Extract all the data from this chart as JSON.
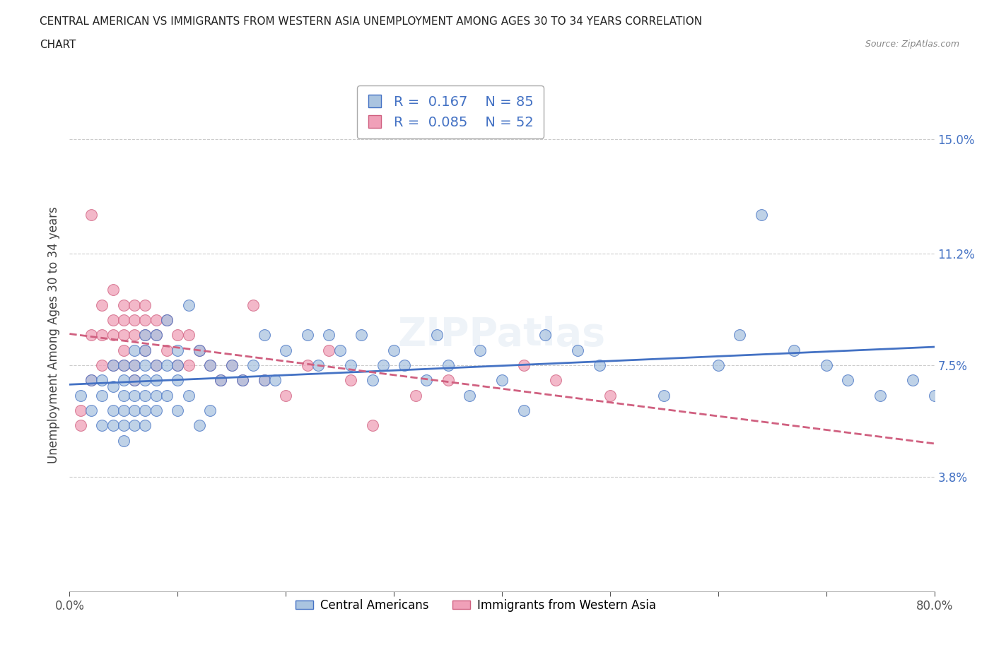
{
  "title_line1": "CENTRAL AMERICAN VS IMMIGRANTS FROM WESTERN ASIA UNEMPLOYMENT AMONG AGES 30 TO 34 YEARS CORRELATION",
  "title_line2": "CHART",
  "source": "Source: ZipAtlas.com",
  "ylabel": "Unemployment Among Ages 30 to 34 years",
  "xlim": [
    0,
    80
  ],
  "ylim": [
    0,
    17
  ],
  "xticks": [
    0,
    10,
    20,
    30,
    40,
    50,
    60,
    70,
    80
  ],
  "xticklabels": [
    "0.0%",
    "",
    "",
    "",
    "",
    "",
    "",
    "",
    "80.0%"
  ],
  "ytick_labels_right": [
    "3.8%",
    "7.5%",
    "11.2%",
    "15.0%"
  ],
  "ytick_values_right": [
    3.8,
    7.5,
    11.2,
    15.0
  ],
  "R_blue": 0.167,
  "N_blue": 85,
  "R_pink": 0.085,
  "N_pink": 52,
  "color_blue": "#aac4e0",
  "color_pink": "#f0a0b8",
  "line_blue": "#4472c4",
  "line_pink": "#d06080",
  "legend_label_blue": "Central Americans",
  "legend_label_pink": "Immigrants from Western Asia",
  "blue_x": [
    1,
    2,
    2,
    3,
    3,
    3,
    4,
    4,
    4,
    4,
    5,
    5,
    5,
    5,
    5,
    5,
    6,
    6,
    6,
    6,
    6,
    6,
    7,
    7,
    7,
    7,
    7,
    7,
    7,
    8,
    8,
    8,
    8,
    8,
    9,
    9,
    9,
    10,
    10,
    10,
    10,
    11,
    11,
    12,
    12,
    13,
    13,
    14,
    15,
    16,
    17,
    18,
    18,
    19,
    20,
    22,
    23,
    24,
    25,
    26,
    27,
    28,
    29,
    30,
    31,
    33,
    34,
    35,
    37,
    38,
    40,
    42,
    44,
    47,
    49,
    55,
    60,
    62,
    64,
    67,
    70,
    72,
    75,
    78,
    80
  ],
  "blue_y": [
    6.5,
    6.0,
    7.0,
    6.5,
    7.0,
    5.5,
    7.5,
    6.8,
    6.0,
    5.5,
    7.5,
    7.0,
    6.5,
    6.0,
    5.5,
    5.0,
    8.0,
    7.5,
    7.0,
    6.5,
    6.0,
    5.5,
    8.5,
    8.0,
    7.5,
    7.0,
    6.5,
    6.0,
    5.5,
    8.5,
    7.5,
    7.0,
    6.5,
    6.0,
    9.0,
    7.5,
    6.5,
    8.0,
    7.5,
    7.0,
    6.0,
    9.5,
    6.5,
    8.0,
    5.5,
    7.5,
    6.0,
    7.0,
    7.5,
    7.0,
    7.5,
    8.5,
    7.0,
    7.0,
    8.0,
    8.5,
    7.5,
    8.5,
    8.0,
    7.5,
    8.5,
    7.0,
    7.5,
    8.0,
    7.5,
    7.0,
    8.5,
    7.5,
    6.5,
    8.0,
    7.0,
    6.0,
    8.5,
    8.0,
    7.5,
    6.5,
    7.5,
    8.5,
    12.5,
    8.0,
    7.5,
    7.0,
    6.5,
    7.0,
    6.5
  ],
  "pink_x": [
    1,
    1,
    2,
    2,
    2,
    3,
    3,
    3,
    4,
    4,
    4,
    4,
    5,
    5,
    5,
    5,
    5,
    6,
    6,
    6,
    6,
    6,
    7,
    7,
    7,
    7,
    8,
    8,
    8,
    9,
    9,
    10,
    10,
    11,
    11,
    12,
    13,
    14,
    15,
    16,
    17,
    18,
    20,
    22,
    24,
    26,
    28,
    32,
    35,
    42,
    45,
    50
  ],
  "pink_y": [
    6.0,
    5.5,
    12.5,
    8.5,
    7.0,
    9.5,
    8.5,
    7.5,
    10.0,
    9.0,
    8.5,
    7.5,
    9.5,
    9.0,
    8.5,
    8.0,
    7.5,
    9.5,
    9.0,
    8.5,
    7.5,
    7.0,
    9.5,
    9.0,
    8.5,
    8.0,
    9.0,
    8.5,
    7.5,
    9.0,
    8.0,
    8.5,
    7.5,
    8.5,
    7.5,
    8.0,
    7.5,
    7.0,
    7.5,
    7.0,
    9.5,
    7.0,
    6.5,
    7.5,
    8.0,
    7.0,
    5.5,
    6.5,
    7.0,
    7.5,
    7.0,
    6.5
  ]
}
